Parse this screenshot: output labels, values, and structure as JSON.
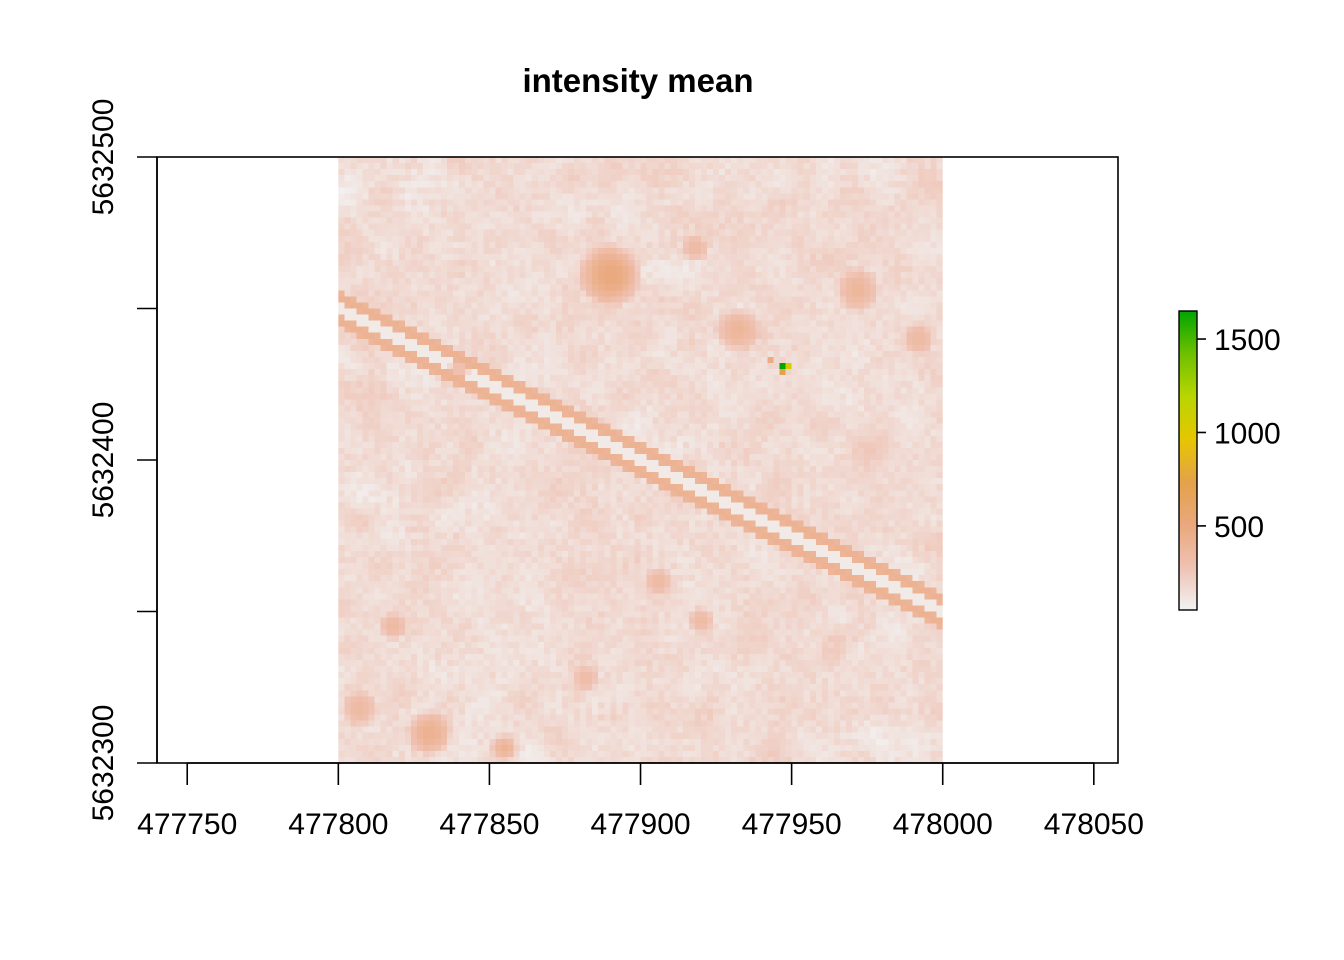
{
  "chart_data": {
    "type": "heatmap",
    "title": "intensity mean",
    "xlabel": "",
    "ylabel": "",
    "xlim": [
      477740,
      478058
    ],
    "ylim": [
      5632300,
      5632500
    ],
    "x_ticks": [
      {
        "value": 477750,
        "label": "477750"
      },
      {
        "value": 477800,
        "label": "477800"
      },
      {
        "value": 477850,
        "label": "477850"
      },
      {
        "value": 477900,
        "label": "477900"
      },
      {
        "value": 477950,
        "label": "477950"
      },
      {
        "value": 478000,
        "label": "478000"
      },
      {
        "value": 478050,
        "label": "478050"
      }
    ],
    "y_ticks": [
      {
        "value": 5632300,
        "label": "5632300"
      },
      {
        "value": 5632350,
        "label": ""
      },
      {
        "value": 5632400,
        "label": "5632400"
      },
      {
        "value": 5632450,
        "label": ""
      },
      {
        "value": 5632500,
        "label": "5632500"
      }
    ],
    "raster_extent": {
      "xmin": 477800,
      "xmax": 478000,
      "ymin": 5632300,
      "ymax": 5632500
    },
    "cell_size": 2,
    "value_range": [
      20,
      1650
    ],
    "color_scale": [
      "#f2f2f2",
      "#efc2b3",
      "#eaa87c",
      "#e4a24a",
      "#e6c600",
      "#b8d600",
      "#6ec000",
      "#00a600"
    ],
    "legend": {
      "position": "right",
      "range": [
        50,
        1650
      ],
      "ticks": [
        {
          "value": 500,
          "label": "500"
        },
        {
          "value": 1000,
          "label": "1000"
        },
        {
          "value": 1500,
          "label": "1500"
        }
      ]
    },
    "features": {
      "baseline_mean": 135,
      "road_start": [
        477800,
        5632450
      ],
      "road_end": [
        478000,
        5632350
      ],
      "road_value": 400,
      "patches": [
        {
          "x": 477890,
          "y": 5632461,
          "r": 11,
          "value": 480
        },
        {
          "x": 477932,
          "y": 5632443,
          "r": 8,
          "value": 360
        },
        {
          "x": 477972,
          "y": 5632456,
          "r": 8,
          "value": 360
        },
        {
          "x": 477992,
          "y": 5632440,
          "r": 6,
          "value": 330
        },
        {
          "x": 477918,
          "y": 5632470,
          "r": 5,
          "value": 320
        },
        {
          "x": 477807,
          "y": 5632318,
          "r": 7,
          "value": 330
        },
        {
          "x": 477830,
          "y": 5632310,
          "r": 8,
          "value": 400
        },
        {
          "x": 477855,
          "y": 5632305,
          "r": 5,
          "value": 380
        },
        {
          "x": 477818,
          "y": 5632345,
          "r": 5,
          "value": 330
        },
        {
          "x": 477906,
          "y": 5632360,
          "r": 5,
          "value": 330
        },
        {
          "x": 477920,
          "y": 5632347,
          "r": 5,
          "value": 320
        },
        {
          "x": 477882,
          "y": 5632328,
          "r": 5,
          "value": 300
        },
        {
          "x": 477840,
          "y": 5632430,
          "r": 4,
          "value": 300
        }
      ],
      "hotspots": [
        {
          "x": 477947,
          "y": 5632431,
          "value": 1650
        },
        {
          "x": 477949,
          "y": 5632431,
          "value": 1050
        },
        {
          "x": 477947,
          "y": 5632429,
          "value": 700
        },
        {
          "x": 477943,
          "y": 5632433,
          "value": 450
        }
      ]
    }
  }
}
